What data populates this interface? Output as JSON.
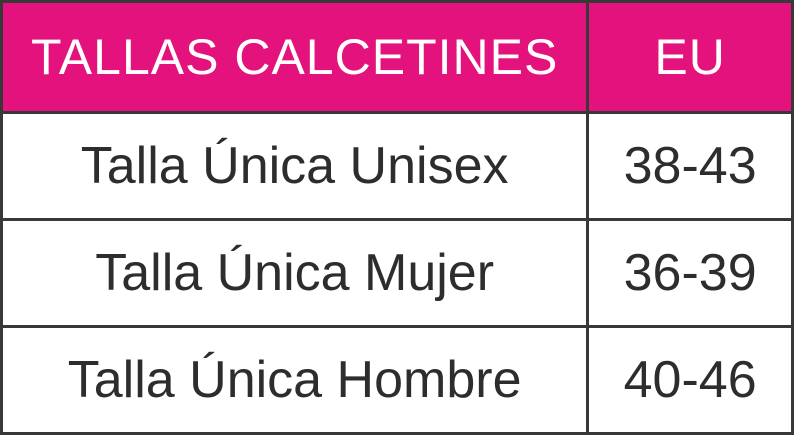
{
  "table": {
    "title": "TALLAS CALCETINES",
    "header": {
      "col1": "TALLAS CALCETINES",
      "col2": "EU"
    },
    "rows": [
      {
        "label": "Talla Única Unisex",
        "eu": "38-43"
      },
      {
        "label": "Talla Única Mujer",
        "eu": "36-39"
      },
      {
        "label": "Talla Única Hombre",
        "eu": "40-46"
      }
    ],
    "colors": {
      "header_bg": "#e3127d",
      "header_text": "#ffffff",
      "body_text": "#2d2d2d",
      "border": "#383838",
      "row_bg": "#ffffff"
    }
  }
}
